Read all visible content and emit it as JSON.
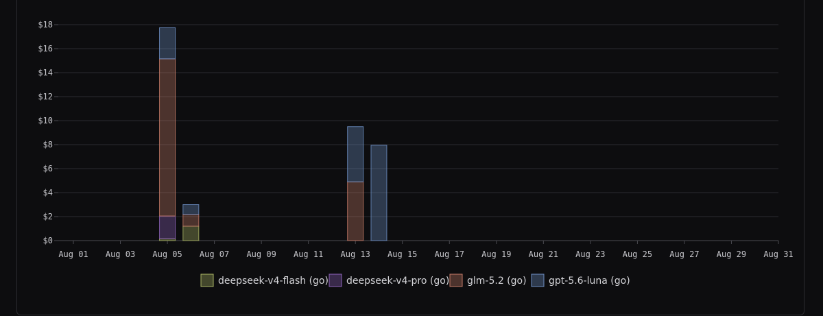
{
  "chart_data": {
    "type": "bar",
    "stacked": true,
    "x": [
      "Aug 01",
      "Aug 02",
      "Aug 03",
      "Aug 04",
      "Aug 05",
      "Aug 06",
      "Aug 07",
      "Aug 08",
      "Aug 09",
      "Aug 10",
      "Aug 11",
      "Aug 12",
      "Aug 13",
      "Aug 14",
      "Aug 15",
      "Aug 16",
      "Aug 17",
      "Aug 18",
      "Aug 19",
      "Aug 20",
      "Aug 21",
      "Aug 22",
      "Aug 23",
      "Aug 24",
      "Aug 25",
      "Aug 26",
      "Aug 27",
      "Aug 28",
      "Aug 29",
      "Aug 30",
      "Aug 31"
    ],
    "x_tick_labels": [
      "Aug 01",
      "Aug 03",
      "Aug 05",
      "Aug 07",
      "Aug 09",
      "Aug 11",
      "Aug 13",
      "Aug 15",
      "Aug 17",
      "Aug 19",
      "Aug 21",
      "Aug 23",
      "Aug 25",
      "Aug 27",
      "Aug 29",
      "Aug 31"
    ],
    "y_tick_labels": [
      "$0",
      "$2",
      "$4",
      "$6",
      "$8",
      "$10",
      "$12",
      "$14",
      "$16",
      "$18"
    ],
    "ylim": [
      0,
      18
    ],
    "grid": true,
    "legend_position": "bottom",
    "series": [
      {
        "name": "deepseek-v4-flash (go)",
        "color": "#a9b464",
        "values": [
          0,
          0,
          0,
          0,
          0.15,
          1.2,
          0,
          0,
          0,
          0,
          0,
          0,
          0,
          0,
          0,
          0,
          0,
          0,
          0,
          0,
          0,
          0,
          0,
          0,
          0,
          0,
          0,
          0,
          0,
          0,
          0
        ]
      },
      {
        "name": "deepseek-v4-pro (go)",
        "color": "#8d62b9",
        "values": [
          0,
          0,
          0,
          0,
          1.9,
          0,
          0,
          0,
          0,
          0,
          0,
          0,
          0,
          0,
          0,
          0,
          0,
          0,
          0,
          0,
          0,
          0,
          0,
          0,
          0,
          0,
          0,
          0,
          0,
          0,
          0
        ]
      },
      {
        "name": "glm-5.2 (go)",
        "color": "#c47a67",
        "values": [
          0,
          0,
          0,
          0,
          13.1,
          1.0,
          0,
          0,
          0,
          0,
          0,
          0,
          4.9,
          0,
          0,
          0,
          0,
          0,
          0,
          0,
          0,
          0,
          0,
          0,
          0,
          0,
          0,
          0,
          0,
          0,
          0
        ]
      },
      {
        "name": "gpt-5.6-luna (go)",
        "color": "#6d8fc4",
        "values": [
          0,
          0,
          0,
          0,
          2.6,
          0.8,
          0,
          0,
          0,
          0,
          0,
          0,
          4.6,
          7.95,
          0,
          0,
          0,
          0,
          0,
          0,
          0,
          0,
          0,
          0,
          0,
          0,
          0,
          0,
          0,
          0,
          0
        ]
      }
    ]
  }
}
